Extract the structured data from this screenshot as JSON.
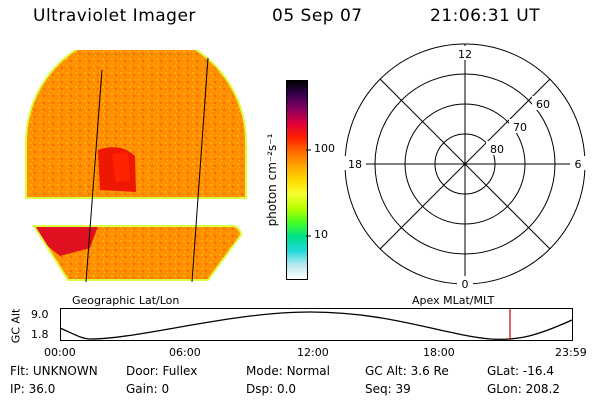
{
  "header": {
    "instrument": "Ultraviolet Imager",
    "date": "05 Sep 07",
    "time": "21:06:31 UT"
  },
  "image_panel": {
    "caption": "Geographic Lat/Lon"
  },
  "colorbar": {
    "unit_label": "photon cm⁻²s⁻¹",
    "ticks": [
      "100",
      "10"
    ],
    "colors": [
      "#000000",
      "#3a0050",
      "#8a0060",
      "#e0003a",
      "#ff2000",
      "#ff6a00",
      "#ffa500",
      "#ffd800",
      "#f4ff30",
      "#b8ff00",
      "#44ff20",
      "#00e08a",
      "#20d8d8",
      "#b8e8f0",
      "#ffffff"
    ]
  },
  "polar_plot": {
    "caption": "Apex MLat/MLT",
    "lat_labels": [
      "60",
      "70",
      "80"
    ],
    "mlt_labels": {
      "top": "12",
      "bottom": "0",
      "left": "18",
      "right": "6"
    }
  },
  "altitude_track": {
    "axis_label": "GC Alt",
    "y_ticks": [
      "9.0",
      "1.8"
    ],
    "x_ticks": [
      "00:00",
      "06:00",
      "12:00",
      "18:00",
      "23:59"
    ],
    "marker_color": "#d00000"
  },
  "status": {
    "row1": [
      {
        "label": "Flt:",
        "value": "UNKNOWN"
      },
      {
        "label": "Door:",
        "value": "Fullex"
      },
      {
        "label": "Mode:",
        "value": "Normal"
      },
      {
        "label": "GC Alt:",
        "value": "3.6 Re"
      },
      {
        "label": "GLat:",
        "value": "-16.4"
      }
    ],
    "row2": [
      {
        "label": "IP:",
        "value": "36.0"
      },
      {
        "label": "Gain:",
        "value": "0"
      },
      {
        "label": "Dsp:",
        "value": "0.0"
      },
      {
        "label": "Seq:",
        "value": "39"
      },
      {
        "label": "GLon:",
        "value": "208.2"
      }
    ]
  }
}
